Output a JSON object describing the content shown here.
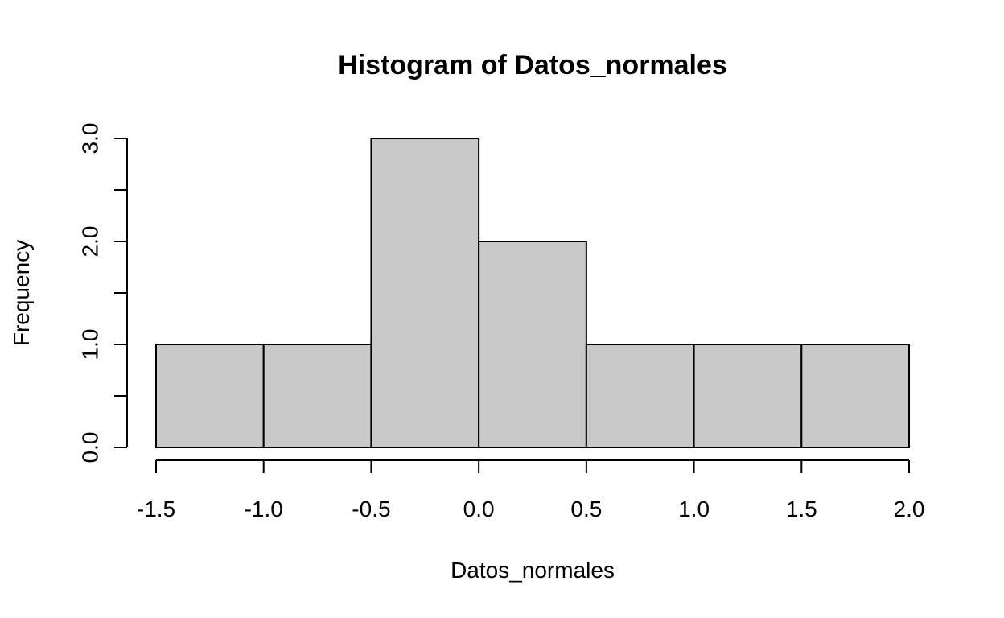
{
  "chart_data": {
    "type": "bar",
    "title": "Histogram of Datos_normales",
    "xlabel": "Datos_normales",
    "ylabel": "Frequency",
    "bins": [
      {
        "start": -1.5,
        "end": -1.0,
        "count": 1
      },
      {
        "start": -1.0,
        "end": -0.5,
        "count": 1
      },
      {
        "start": -0.5,
        "end": 0.0,
        "count": 3
      },
      {
        "start": 0.0,
        "end": 0.5,
        "count": 2
      },
      {
        "start": 0.5,
        "end": 1.0,
        "count": 1
      },
      {
        "start": 1.0,
        "end": 1.5,
        "count": 1
      },
      {
        "start": 1.5,
        "end": 2.0,
        "count": 1
      }
    ],
    "xlim": [
      -1.5,
      2.0
    ],
    "ylim": [
      0,
      3
    ],
    "x_ticks": [
      -1.5,
      -1.0,
      -0.5,
      0.0,
      0.5,
      1.0,
      1.5,
      2.0
    ],
    "x_tick_labels": [
      "-1.5",
      "-1.0",
      "-0.5",
      "0.0",
      "0.5",
      "1.0",
      "1.5",
      "2.0"
    ],
    "y_ticks": [
      0,
      0.5,
      1,
      1.5,
      2,
      2.5,
      3
    ],
    "y_tick_labels": [
      "0.0",
      "",
      "1.0",
      "",
      "2.0",
      "",
      "3.0"
    ],
    "grid": false,
    "colors": {
      "bar_fill": "#c9c9c9",
      "bar_stroke": "#000000"
    }
  }
}
